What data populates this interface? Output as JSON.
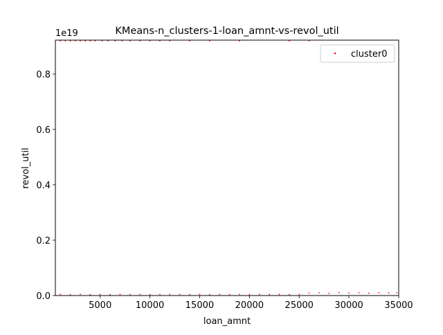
{
  "chart_data": {
    "type": "scatter",
    "title": "KMeans-n_clusters-1-loan_amnt-vs-revol_util",
    "xlabel": "loan_amnt",
    "ylabel": "revol_util",
    "xlim": [
      500,
      35000
    ],
    "ylim": [
      0,
      9.223372036854776e+18
    ],
    "x_ticks": [
      5000,
      10000,
      15000,
      20000,
      25000,
      30000,
      35000
    ],
    "x_tick_labels": [
      "5000",
      "10000",
      "15000",
      "20000",
      "25000",
      "30000",
      "35000"
    ],
    "y_ticks": [
      0,
      2e+18,
      4e+18,
      6e+18,
      8e+18
    ],
    "y_tick_labels": [
      "0.0",
      "0.2",
      "0.4",
      "0.6",
      "0.8"
    ],
    "y_offset_label": "1e19",
    "grid": false,
    "legend_position": "top-right",
    "series": [
      {
        "name": "cluster0",
        "color": "#ff0000",
        "points": [
          [
            1000,
            9.2e+18
          ],
          [
            1500,
            9.2e+18
          ],
          [
            2000,
            9.2e+18
          ],
          [
            2500,
            9.21e+18
          ],
          [
            3000,
            9.2e+18
          ],
          [
            3500,
            9.2e+18
          ],
          [
            4000,
            9.21e+18
          ],
          [
            4500,
            9.2e+18
          ],
          [
            5200,
            9.2e+18
          ],
          [
            5800,
            9.2e+18
          ],
          [
            6500,
            9.21e+18
          ],
          [
            7200,
            9.2e+18
          ],
          [
            8000,
            9.2e+18
          ],
          [
            9000,
            9.21e+18
          ],
          [
            10000,
            9.2e+18
          ],
          [
            11000,
            9.2e+18
          ],
          [
            12000,
            9.21e+18
          ],
          [
            14000,
            9.2e+18
          ],
          [
            16000,
            9.2e+18
          ],
          [
            19000,
            9.21e+18
          ],
          [
            24000,
            9.2e+18
          ],
          [
            26000,
            9.21e+18
          ],
          [
            1000,
            4e+16
          ],
          [
            2000,
            3.5e+16
          ],
          [
            3000,
            4.5e+16
          ],
          [
            4000,
            3e+16
          ],
          [
            5000,
            4e+16
          ],
          [
            6000,
            3.5e+16
          ],
          [
            7000,
            4.2e+16
          ],
          [
            8000,
            3.8e+16
          ],
          [
            9000,
            4e+16
          ],
          [
            10000,
            3.6e+16
          ],
          [
            11000,
            4.1e+16
          ],
          [
            12000,
            3.9e+16
          ],
          [
            13000,
            4e+16
          ],
          [
            14000,
            3.7e+16
          ],
          [
            15000,
            4.2e+16
          ],
          [
            16000,
            3.5e+16
          ],
          [
            17000,
            4e+16
          ],
          [
            18000,
            3.8e+16
          ],
          [
            19000,
            4.1e+16
          ],
          [
            20000,
            3.6e+16
          ],
          [
            21000,
            4e+16
          ],
          [
            22000,
            3.9e+16
          ],
          [
            23000,
            4.2e+16
          ],
          [
            24000,
            3.7e+16
          ],
          [
            25000,
            4e+16
          ],
          [
            26000,
            9e+16
          ],
          [
            27000,
            1e+17
          ],
          [
            28000,
            8e+16
          ],
          [
            29000,
            1.1e+17
          ],
          [
            30000,
            9e+16
          ],
          [
            31000,
            1e+17
          ],
          [
            32000,
            8.5e+16
          ],
          [
            33000,
            1.05e+17
          ],
          [
            34000,
            9.5e+16
          ],
          [
            34800,
            1e+17
          ]
        ]
      }
    ]
  }
}
